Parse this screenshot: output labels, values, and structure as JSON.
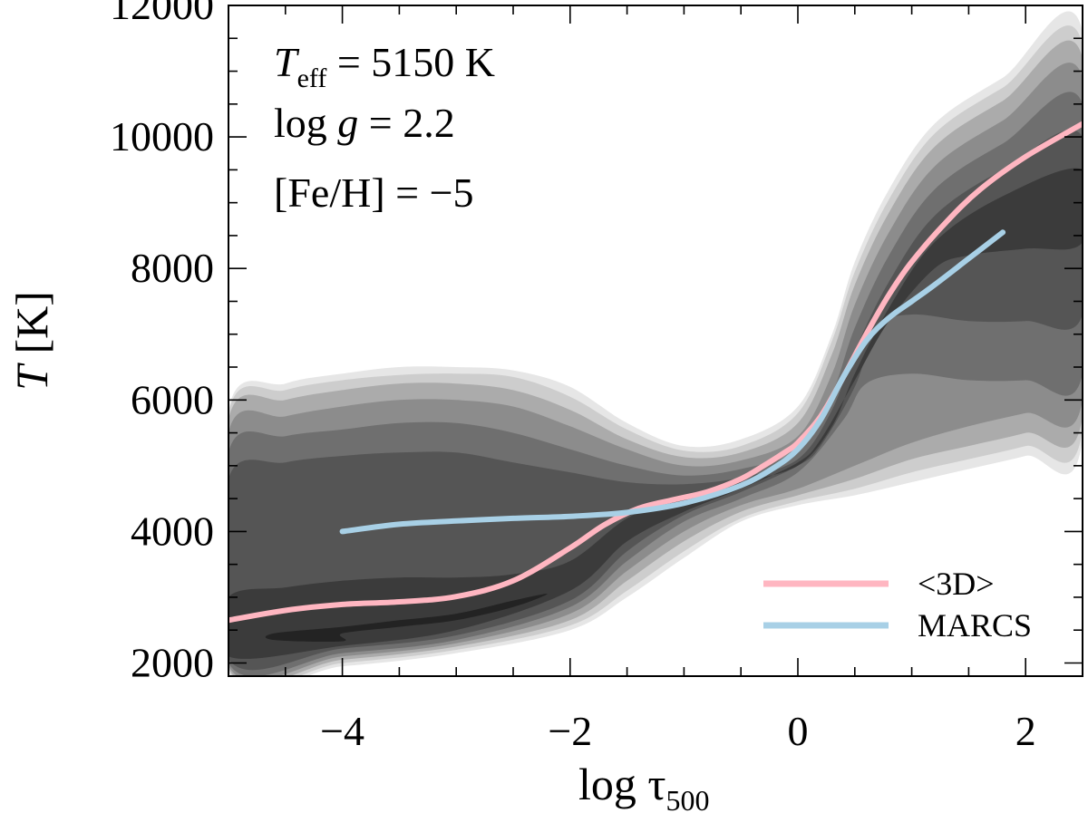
{
  "chart_data": {
    "type": "line",
    "title": "",
    "xlabel": {
      "main": "log τ",
      "sub": "500"
    },
    "ylabel": {
      "italic": "T",
      "rest": " [K]"
    },
    "xlim": [
      -5,
      2.5
    ],
    "ylim": [
      1800,
      12000
    ],
    "xticks": [
      -4,
      -2,
      0,
      2
    ],
    "xtick_labels": [
      "−4",
      "−2",
      "0",
      "2"
    ],
    "yticks": [
      2000,
      4000,
      6000,
      8000,
      10000,
      12000
    ],
    "ytick_labels": [
      "2000",
      "4000",
      "6000",
      "8000",
      "10000",
      "12000"
    ],
    "grid": false,
    "legend_position": "bottom-right",
    "annotations": {
      "teff": {
        "symbol": "T",
        "sub": "eff",
        "rest": " = 5150 K"
      },
      "logg": {
        "prefix": "log ",
        "italic": "g",
        "rest": " = 2.2"
      },
      "feh": {
        "text": "[Fe/H] = −5"
      }
    },
    "series": [
      {
        "name": "<3D>",
        "color": "#FFB6C1",
        "x": [
          -5.0,
          -4.5,
          -4.0,
          -3.5,
          -3.0,
          -2.5,
          -2.0,
          -1.7,
          -1.4,
          -1.1,
          -0.8,
          -0.5,
          -0.3,
          -0.1,
          0.0,
          0.2,
          0.4,
          0.6,
          0.8,
          1.0,
          1.3,
          1.6,
          2.0,
          2.5
        ],
        "values": [
          2650,
          2800,
          2890,
          2930,
          3010,
          3250,
          3750,
          4100,
          4350,
          4480,
          4600,
          4800,
          5000,
          5220,
          5350,
          5750,
          6350,
          7000,
          7600,
          8100,
          8700,
          9200,
          9700,
          10200
        ]
      },
      {
        "name": "MARCS",
        "color": "#A8D0E6",
        "x": [
          -4.0,
          -3.5,
          -3.0,
          -2.5,
          -2.0,
          -1.5,
          -1.0,
          -0.5,
          -0.2,
          0.0,
          0.2,
          0.4,
          0.6,
          0.8,
          1.0,
          1.2,
          1.5,
          1.8
        ],
        "values": [
          4000,
          4110,
          4160,
          4200,
          4230,
          4290,
          4430,
          4700,
          4980,
          5250,
          5700,
          6350,
          6900,
          7250,
          7500,
          7750,
          8150,
          8550
        ]
      }
    ],
    "density_levels": [
      {
        "color": "#e6e6e6",
        "upper": [
          [
            -5,
            5850
          ],
          [
            -4.5,
            6250
          ],
          [
            -4,
            6400
          ],
          [
            -3.5,
            6500
          ],
          [
            -3,
            6500
          ],
          [
            -2.5,
            6450
          ],
          [
            -2,
            6200
          ],
          [
            -1.5,
            5650
          ],
          [
            -1,
            5300
          ],
          [
            -0.5,
            5400
          ],
          [
            0,
            5900
          ],
          [
            0.3,
            7000
          ],
          [
            0.5,
            8100
          ],
          [
            0.8,
            9200
          ],
          [
            1.2,
            10200
          ],
          [
            1.8,
            10900
          ],
          [
            2.5,
            11600
          ]
        ],
        "lower": [
          [
            2.5,
            5400
          ],
          [
            2,
            5150
          ],
          [
            1.5,
            4950
          ],
          [
            1,
            4750
          ],
          [
            0.5,
            4550
          ],
          [
            0,
            4400
          ],
          [
            -0.5,
            4150
          ],
          [
            -1,
            3600
          ],
          [
            -1.5,
            3000
          ],
          [
            -2,
            2500
          ],
          [
            -3,
            2150
          ],
          [
            -4,
            1950
          ],
          [
            -5,
            1850
          ]
        ]
      },
      {
        "color": "#cdcdcd",
        "upper": [
          [
            -5,
            5800
          ],
          [
            -4.5,
            6150
          ],
          [
            -4,
            6300
          ],
          [
            -3.5,
            6380
          ],
          [
            -3,
            6400
          ],
          [
            -2.5,
            6350
          ],
          [
            -2,
            6050
          ],
          [
            -1.5,
            5550
          ],
          [
            -1,
            5230
          ],
          [
            -0.5,
            5300
          ],
          [
            0,
            5800
          ],
          [
            0.3,
            6900
          ],
          [
            0.5,
            7950
          ],
          [
            0.8,
            9050
          ],
          [
            1.2,
            10050
          ],
          [
            1.8,
            10750
          ],
          [
            2.5,
            11400
          ]
        ],
        "lower": [
          [
            2.5,
            5550
          ],
          [
            2,
            5300
          ],
          [
            1.5,
            5100
          ],
          [
            1,
            4900
          ],
          [
            0.5,
            4650
          ],
          [
            0,
            4460
          ],
          [
            -0.5,
            4200
          ],
          [
            -1,
            3700
          ],
          [
            -1.5,
            3100
          ],
          [
            -2,
            2570
          ],
          [
            -3,
            2200
          ],
          [
            -4,
            2000
          ],
          [
            -5,
            1880
          ]
        ]
      },
      {
        "color": "#ababab",
        "upper": [
          [
            -5,
            5700
          ],
          [
            -4.5,
            6000
          ],
          [
            -4,
            6150
          ],
          [
            -3.5,
            6250
          ],
          [
            -3,
            6250
          ],
          [
            -2.5,
            6150
          ],
          [
            -2,
            5850
          ],
          [
            -1.5,
            5400
          ],
          [
            -1,
            5130
          ],
          [
            -0.5,
            5200
          ],
          [
            0,
            5650
          ],
          [
            0.3,
            6700
          ],
          [
            0.5,
            7750
          ],
          [
            0.8,
            8850
          ],
          [
            1.2,
            9850
          ],
          [
            1.8,
            10550
          ],
          [
            2.5,
            11200
          ]
        ],
        "lower": [
          [
            2.5,
            5750
          ],
          [
            2,
            5500
          ],
          [
            1.5,
            5300
          ],
          [
            1,
            5100
          ],
          [
            0.5,
            4800
          ],
          [
            0,
            4550
          ],
          [
            -0.5,
            4300
          ],
          [
            -1,
            3850
          ],
          [
            -1.5,
            3250
          ],
          [
            -2,
            2650
          ],
          [
            -3,
            2250
          ],
          [
            -4,
            2050
          ],
          [
            -5,
            1920
          ]
        ]
      },
      {
        "color": "#8c8c8c",
        "upper": [
          [
            -5,
            5500
          ],
          [
            -4.5,
            5750
          ],
          [
            -4,
            5900
          ],
          [
            -3.5,
            6000
          ],
          [
            -3,
            6000
          ],
          [
            -2.5,
            5900
          ],
          [
            -2,
            5600
          ],
          [
            -1.5,
            5250
          ],
          [
            -1,
            5000
          ],
          [
            -0.5,
            5080
          ],
          [
            0,
            5450
          ],
          [
            0.3,
            6400
          ],
          [
            0.5,
            7450
          ],
          [
            0.8,
            8550
          ],
          [
            1.2,
            9550
          ],
          [
            1.8,
            10250
          ],
          [
            2.5,
            10900
          ]
        ],
        "lower": [
          [
            2.5,
            6000
          ],
          [
            2,
            5800
          ],
          [
            1.5,
            5600
          ],
          [
            1,
            5350
          ],
          [
            0.5,
            5000
          ],
          [
            0,
            4650
          ],
          [
            -0.5,
            4400
          ],
          [
            -1,
            4000
          ],
          [
            -1.5,
            3400
          ],
          [
            -2,
            2750
          ],
          [
            -3,
            2300
          ],
          [
            -4,
            2100
          ],
          [
            -5,
            1960
          ]
        ]
      },
      {
        "color": "#6f6f6f",
        "upper": [
          [
            -5,
            5200
          ],
          [
            -4.5,
            5450
          ],
          [
            -4,
            5550
          ],
          [
            -3.5,
            5650
          ],
          [
            -3,
            5650
          ],
          [
            -2.5,
            5500
          ],
          [
            -2,
            5250
          ],
          [
            -1.5,
            5000
          ],
          [
            -1,
            4850
          ],
          [
            -0.5,
            4950
          ],
          [
            0,
            5250
          ],
          [
            0.3,
            6100
          ],
          [
            0.5,
            7100
          ],
          [
            0.8,
            8200
          ],
          [
            1.2,
            9200
          ],
          [
            1.8,
            9900
          ],
          [
            2.5,
            10500
          ]
        ],
        "lower": [
          [
            2.5,
            6400
          ],
          [
            2,
            6300
          ],
          [
            1.5,
            6300
          ],
          [
            1,
            6400
          ],
          [
            0.6,
            6250
          ],
          [
            0.4,
            5700
          ],
          [
            0,
            4900
          ],
          [
            -0.5,
            4500
          ],
          [
            -1,
            4150
          ],
          [
            -1.5,
            3550
          ],
          [
            -2,
            2850
          ],
          [
            -3,
            2350
          ],
          [
            -4,
            2150
          ],
          [
            -5,
            2000
          ]
        ]
      },
      {
        "color": "#555555",
        "upper": [
          [
            -5,
            4800
          ],
          [
            -4.5,
            5050
          ],
          [
            -4,
            5150
          ],
          [
            -3.5,
            5200
          ],
          [
            -3,
            5200
          ],
          [
            -2.5,
            5050
          ],
          [
            -2,
            4900
          ],
          [
            -1.5,
            4750
          ],
          [
            -1,
            4720
          ],
          [
            -0.5,
            4820
          ],
          [
            0,
            5100
          ],
          [
            0.3,
            5850
          ],
          [
            0.5,
            6750
          ],
          [
            0.8,
            7800
          ],
          [
            1.2,
            8800
          ],
          [
            1.8,
            9500
          ],
          [
            2.5,
            10000
          ]
        ],
        "lower": [
          [
            2.5,
            7300
          ],
          [
            2,
            7200
          ],
          [
            1.5,
            7200
          ],
          [
            1,
            7300
          ],
          [
            0.7,
            7100
          ],
          [
            0.5,
            6200
          ],
          [
            0.2,
            5300
          ],
          [
            0,
            5000
          ],
          [
            -0.5,
            4600
          ],
          [
            -1,
            4250
          ],
          [
            -1.5,
            3700
          ],
          [
            -2,
            2950
          ],
          [
            -3,
            2420
          ],
          [
            -4,
            2220
          ],
          [
            -5,
            2060
          ]
        ]
      },
      {
        "color": "#3b3b3b",
        "upper": [
          [
            -5,
            3000
          ],
          [
            -4.5,
            3150
          ],
          [
            -4,
            3250
          ],
          [
            -3.5,
            3300
          ],
          [
            -3,
            3300
          ],
          [
            -2.5,
            3350
          ],
          [
            -2,
            3550
          ],
          [
            -1.5,
            4200
          ],
          [
            -1,
            4550
          ],
          [
            -0.5,
            4750
          ],
          [
            0,
            5000
          ],
          [
            0.3,
            5600
          ],
          [
            0.5,
            6400
          ],
          [
            0.8,
            7400
          ],
          [
            1.2,
            8400
          ],
          [
            1.8,
            9100
          ],
          [
            2.5,
            9500
          ]
        ],
        "lower": [
          [
            2.5,
            8400
          ],
          [
            2,
            8300
          ],
          [
            1.5,
            8200
          ],
          [
            1.2,
            8000
          ],
          [
            0.8,
            7200
          ],
          [
            0.5,
            6300
          ],
          [
            0.2,
            5400
          ],
          [
            0,
            5050
          ],
          [
            -0.5,
            4650
          ],
          [
            -1,
            4300
          ],
          [
            -1.5,
            3850
          ],
          [
            -2,
            3100
          ],
          [
            -3,
            2500
          ],
          [
            -4,
            2260
          ],
          [
            -5,
            2100
          ]
        ]
      },
      {
        "color": "#232323",
        "upper": [
          [
            -4.6,
            2450
          ],
          [
            -4,
            2550
          ],
          [
            -3.5,
            2650
          ],
          [
            -3,
            2750
          ],
          [
            -2.5,
            2950
          ],
          [
            -2.2,
            3050
          ],
          [
            -2.5,
            2850
          ],
          [
            -3,
            2650
          ],
          [
            -3.5,
            2550
          ],
          [
            -4,
            2450
          ]
        ],
        "lower": [
          [
            -4,
            2330
          ],
          [
            -4.6,
            2350
          ]
        ]
      }
    ]
  }
}
